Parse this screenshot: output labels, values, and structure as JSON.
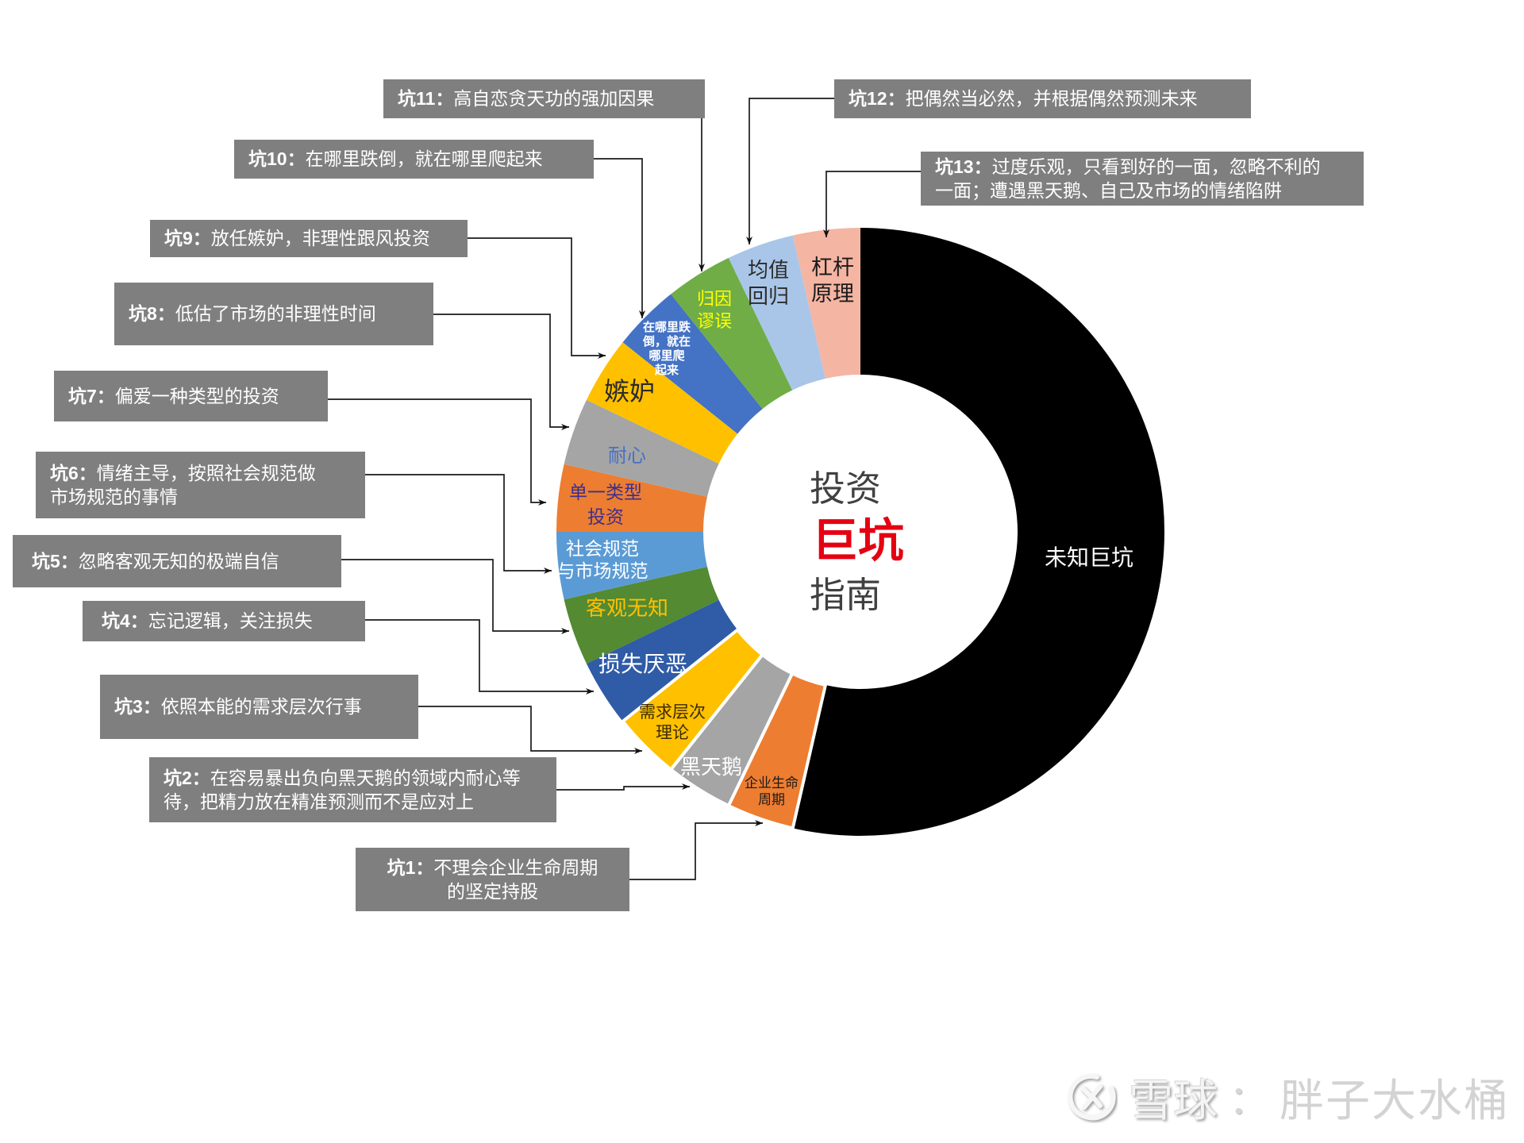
{
  "chart_data": {
    "type": "pie",
    "variant": "doughnut",
    "title": "投资巨坑指南",
    "center_text": [
      "投资",
      "巨坑",
      "指南"
    ],
    "start_angle_deg": 0,
    "direction": "clockwise",
    "hole_ratio": 0.52,
    "categories": [
      "未知巨坑",
      "企业生命周期",
      "黑天鹅",
      "需求层次理论",
      "损失厌恶",
      "客观无知",
      "社会规范与市场规范",
      "单一类型投资",
      "耐心",
      "嫉妒",
      "在哪里跌倒，就在哪里爬起来",
      "归因谬误",
      "均值回归",
      "杠杆原理"
    ],
    "values": [
      15,
      1,
      1,
      1,
      1,
      1,
      1,
      1,
      1,
      1,
      1,
      1,
      1,
      1
    ],
    "colors": [
      "#000000",
      "#ED7D31",
      "#A5A5A5",
      "#FFC000",
      "#2F5BA7",
      "#538A32",
      "#5B9BD5",
      "#ED7D31",
      "#A5A5A5",
      "#FFC000",
      "#4472C4",
      "#70AD47",
      "#A9C6E8",
      "#F5B5A3"
    ],
    "bordered_slices": [
      1,
      2,
      3
    ],
    "label_lines": [
      [
        "未知巨坑"
      ],
      [
        "企业生命",
        "周期"
      ],
      [
        "黑天鹅"
      ],
      [
        "需求层次",
        "理论"
      ],
      [
        "损失厌恶"
      ],
      [
        "客观无知"
      ],
      [
        "社会规范",
        "与市场规范"
      ],
      [
        "单一类型",
        "投资"
      ],
      [
        "耐心"
      ],
      [
        "嫉妒"
      ],
      [
        "在哪里跌",
        "倒，就在",
        "哪里爬",
        "起来"
      ],
      [
        "归因",
        "谬误"
      ],
      [
        "均值",
        "回归"
      ],
      [
        "杠杆",
        "原理"
      ]
    ],
    "label_colors": [
      "#FFFFFF",
      "#1A1A1A",
      "#FFFFFF",
      "#3A2A00",
      "#FFFFFF",
      "#FFC000",
      "#FFFFFF",
      "#3B2F8F",
      "#4472C4",
      "#2B2B2B",
      "#FFFFFF",
      "#FFFF00",
      "#2B2B2B",
      "#1A1A1A"
    ],
    "center_colors": {
      "primary": "#404040",
      "accent": "#E50012"
    },
    "annotation_style": {
      "background": "#7F7F7F",
      "text": "#FFFFFF"
    },
    "annotations": [
      {
        "prefix": "坑1：",
        "lines": [
          "不理会企业生命周期",
          "的坚定持股"
        ],
        "target": "企业生命周期"
      },
      {
        "prefix": "坑2：",
        "lines": [
          "在容易暴出负向黑天鹅的领域内耐心等",
          "待，把精力放在精准预测而不是应对上"
        ],
        "target": "黑天鹅"
      },
      {
        "prefix": "坑3：",
        "lines": [
          "依照本能的需求层次行事"
        ],
        "target": "需求层次理论"
      },
      {
        "prefix": "坑4：",
        "lines": [
          "忘记逻辑，关注损失"
        ],
        "target": "损失厌恶"
      },
      {
        "prefix": "坑5：",
        "lines": [
          "忽略客观无知的极端自信"
        ],
        "target": "客观无知"
      },
      {
        "prefix": "坑6：",
        "lines": [
          "情绪主导，按照社会规范做",
          "市场规范的事情"
        ],
        "target": "社会规范与市场规范"
      },
      {
        "prefix": "坑7：",
        "lines": [
          "偏爱一种类型的投资"
        ],
        "target": "单一类型投资"
      },
      {
        "prefix": "坑8：",
        "lines": [
          "低估了市场的非理性时间"
        ],
        "target": "耐心"
      },
      {
        "prefix": "坑9：",
        "lines": [
          "放任嫉妒，非理性跟风投资"
        ],
        "target": "嫉妒"
      },
      {
        "prefix": "坑10：",
        "lines": [
          "在哪里跌倒，就在哪里爬起来"
        ],
        "target": "在哪里跌倒，就在哪里爬起来"
      },
      {
        "prefix": "坑11：",
        "lines": [
          "高自恋贪天功的强加因果"
        ],
        "target": "归因谬误"
      },
      {
        "prefix": "坑12：",
        "lines": [
          "把偶然当必然，并根据偶然预测未来"
        ],
        "target": "均值回归"
      },
      {
        "prefix": "坑13：",
        "lines": [
          "过度乐观，只看到好的一面，忽略不利的",
          "一面；遭遇黑天鹅、自己及市场的情绪陷阱"
        ],
        "target": "杠杆原理"
      }
    ],
    "legend": "none",
    "grid": false
  },
  "watermark": {
    "logo_icon": "snowball-logo-icon",
    "platform": "雪球",
    "separator": "：",
    "author": "胖子大水桶"
  }
}
